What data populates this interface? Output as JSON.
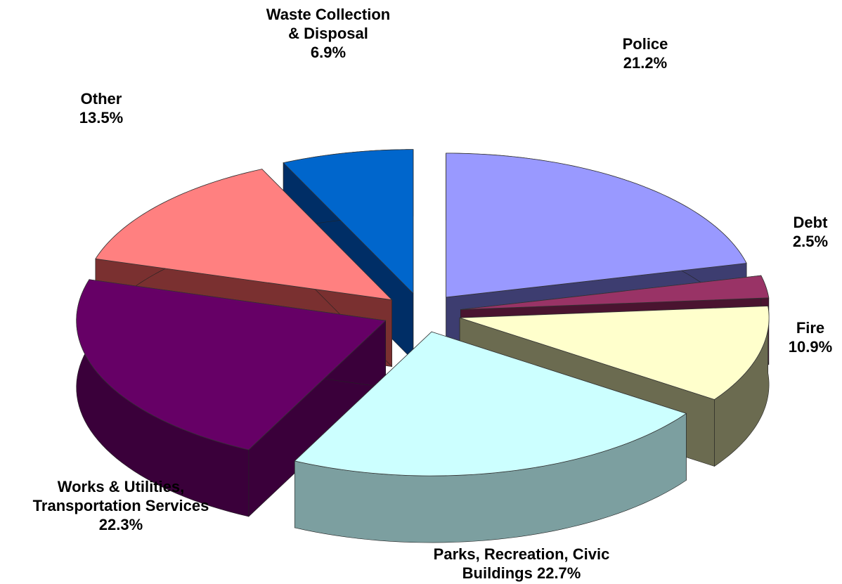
{
  "chart_data": {
    "type": "pie",
    "variant": "3d-exploded",
    "title": "",
    "slices": [
      {
        "label": [
          "Police"
        ],
        "value": 21.2,
        "value_text": "21.2%",
        "color": "#9999ff",
        "side_color": "#3d3d70"
      },
      {
        "label": [
          "Debt"
        ],
        "value": 2.5,
        "value_text": "2.5%",
        "color": "#993366",
        "side_color": "#4a1430"
      },
      {
        "label": [
          "Fire"
        ],
        "value": 10.9,
        "value_text": "10.9%",
        "color": "#ffffcc",
        "side_color": "#6b6b50"
      },
      {
        "label": [
          "Parks, Recreation, Civic",
          "Buildings"
        ],
        "value": 22.7,
        "value_text": "22.7%",
        "color": "#ccffff",
        "side_color": "#7c9fa0"
      },
      {
        "label": [
          "Works & Utilities,",
          "Transportation Services"
        ],
        "value": 22.3,
        "value_text": "22.3%",
        "color": "#660066",
        "side_color": "#3a003a"
      },
      {
        "label": [
          "Other"
        ],
        "value": 13.5,
        "value_text": "13.5%",
        "color": "#ff8080",
        "side_color": "#7a3030"
      },
      {
        "label": [
          "Waste Collection",
          "& Disposal"
        ],
        "value": 6.9,
        "value_text": "6.9%",
        "color": "#0066cc",
        "side_color": "#002e66"
      }
    ]
  }
}
